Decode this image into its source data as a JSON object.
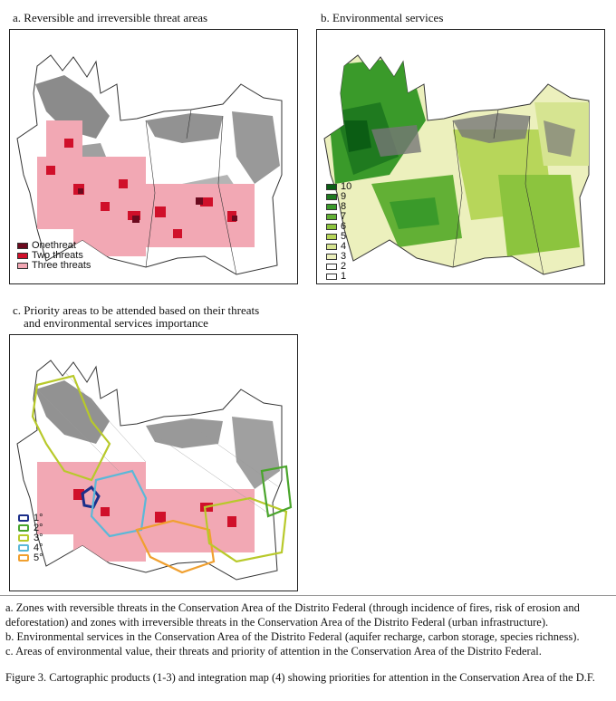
{
  "panels": {
    "a": {
      "title": "a. Reversible and irreversible  threat areas",
      "legend": [
        {
          "label": "Onethreat",
          "color": "#6b0a1e"
        },
        {
          "label": "Two threats",
          "color": "#d0102a"
        },
        {
          "label": "Three threats",
          "color": "#f2a8b4"
        }
      ]
    },
    "b": {
      "title": "b. Environmental services",
      "legend": [
        {
          "label": "10",
          "color": "#0b5d14"
        },
        {
          "label": "9",
          "color": "#1f7a1f"
        },
        {
          "label": "8",
          "color": "#3a9a2a"
        },
        {
          "label": "7",
          "color": "#62b035"
        },
        {
          "label": "6",
          "color": "#8cc43e"
        },
        {
          "label": "5",
          "color": "#b7d65a"
        },
        {
          "label": "4",
          "color": "#d6e491"
        },
        {
          "label": "3",
          "color": "#ecf0bd"
        },
        {
          "label": "2",
          "color": "#ffffff"
        },
        {
          "label": "1",
          "color": "#ffffff"
        }
      ]
    },
    "c": {
      "title_line1": "c. Priority areas to be attended based on their threats",
      "title_line2": "and environmental services importance",
      "legend": [
        {
          "label": "1°",
          "color": "#1c2f8a"
        },
        {
          "label": "2°",
          "color": "#4aa52c"
        },
        {
          "label": "3°",
          "color": "#b8c92a"
        },
        {
          "label": "4°",
          "color": "#5bb8d8"
        },
        {
          "label": "5°",
          "color": "#f0a030"
        }
      ]
    }
  },
  "captions": [
    "a. Zones with reversible threats in the Conservation Area of the Distrito Federal (through incidence of fires, risk of erosion and deforestation) and zones with irreversible threats in the Conservation Area of the Distrito Federal (urban infrastructure).",
    "b. Environmental services in the Conservation Area of the Distrito Federal (aquifer recharge, carbon storage, species richness).",
    "c. Areas of environmental value, their threats and priority of attention in the Conservation Area of the Distrito Federal."
  ],
  "figure_caption": "Figure 3. Cartographic products (1-3) and integration map (4) showing priorities for attention in the Conservation Area of the D.F."
}
